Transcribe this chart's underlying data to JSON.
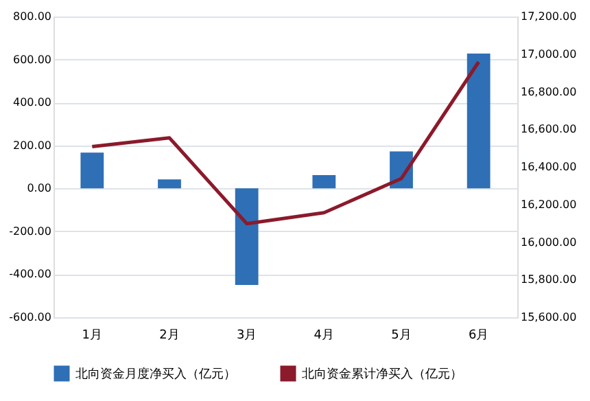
{
  "chart_data": {
    "type": "bar",
    "categories": [
      "1月",
      "2月",
      "3月",
      "4月",
      "5月",
      "6月"
    ],
    "series": [
      {
        "name": "北向资金月度净买入（亿元）",
        "color": "#2e6fb6",
        "values": [
          166,
          42,
          -450,
          62,
          172,
          627
        ]
      },
      {
        "name": "北向资金累计净买入（亿元）",
        "type": "line",
        "axis": "y2",
        "color": "#8b1a2b",
        "values": [
          16508,
          16554,
          16098,
          16156,
          16338,
          16958
        ]
      }
    ],
    "ylim": [
      -600,
      800
    ],
    "yticks": [
      {
        "value": -600,
        "label": "-600.00"
      },
      {
        "value": -400,
        "label": "-400.00"
      },
      {
        "value": -200,
        "label": "-200.00"
      },
      {
        "value": 0,
        "label": "0.00"
      },
      {
        "value": 200,
        "label": "200.00"
      },
      {
        "value": 400,
        "label": "400.00"
      },
      {
        "value": 600,
        "label": "600.00"
      },
      {
        "value": 800,
        "label": "800.00"
      }
    ],
    "y2lim": [
      15600,
      17200
    ],
    "y2ticks": [
      {
        "value": 15600,
        "label": "15,600.00"
      },
      {
        "value": 15800,
        "label": "15,800.00"
      },
      {
        "value": 16000,
        "label": "16,000.00"
      },
      {
        "value": 16200,
        "label": "16,200.00"
      },
      {
        "value": 16400,
        "label": "16,400.00"
      },
      {
        "value": 16600,
        "label": "16,600.00"
      },
      {
        "value": 16800,
        "label": "16,800.00"
      },
      {
        "value": 17000,
        "label": "17,000.00"
      },
      {
        "value": 17200,
        "label": "17,200.00"
      }
    ],
    "grid": "y",
    "legend": "bottom",
    "marker": "none"
  }
}
